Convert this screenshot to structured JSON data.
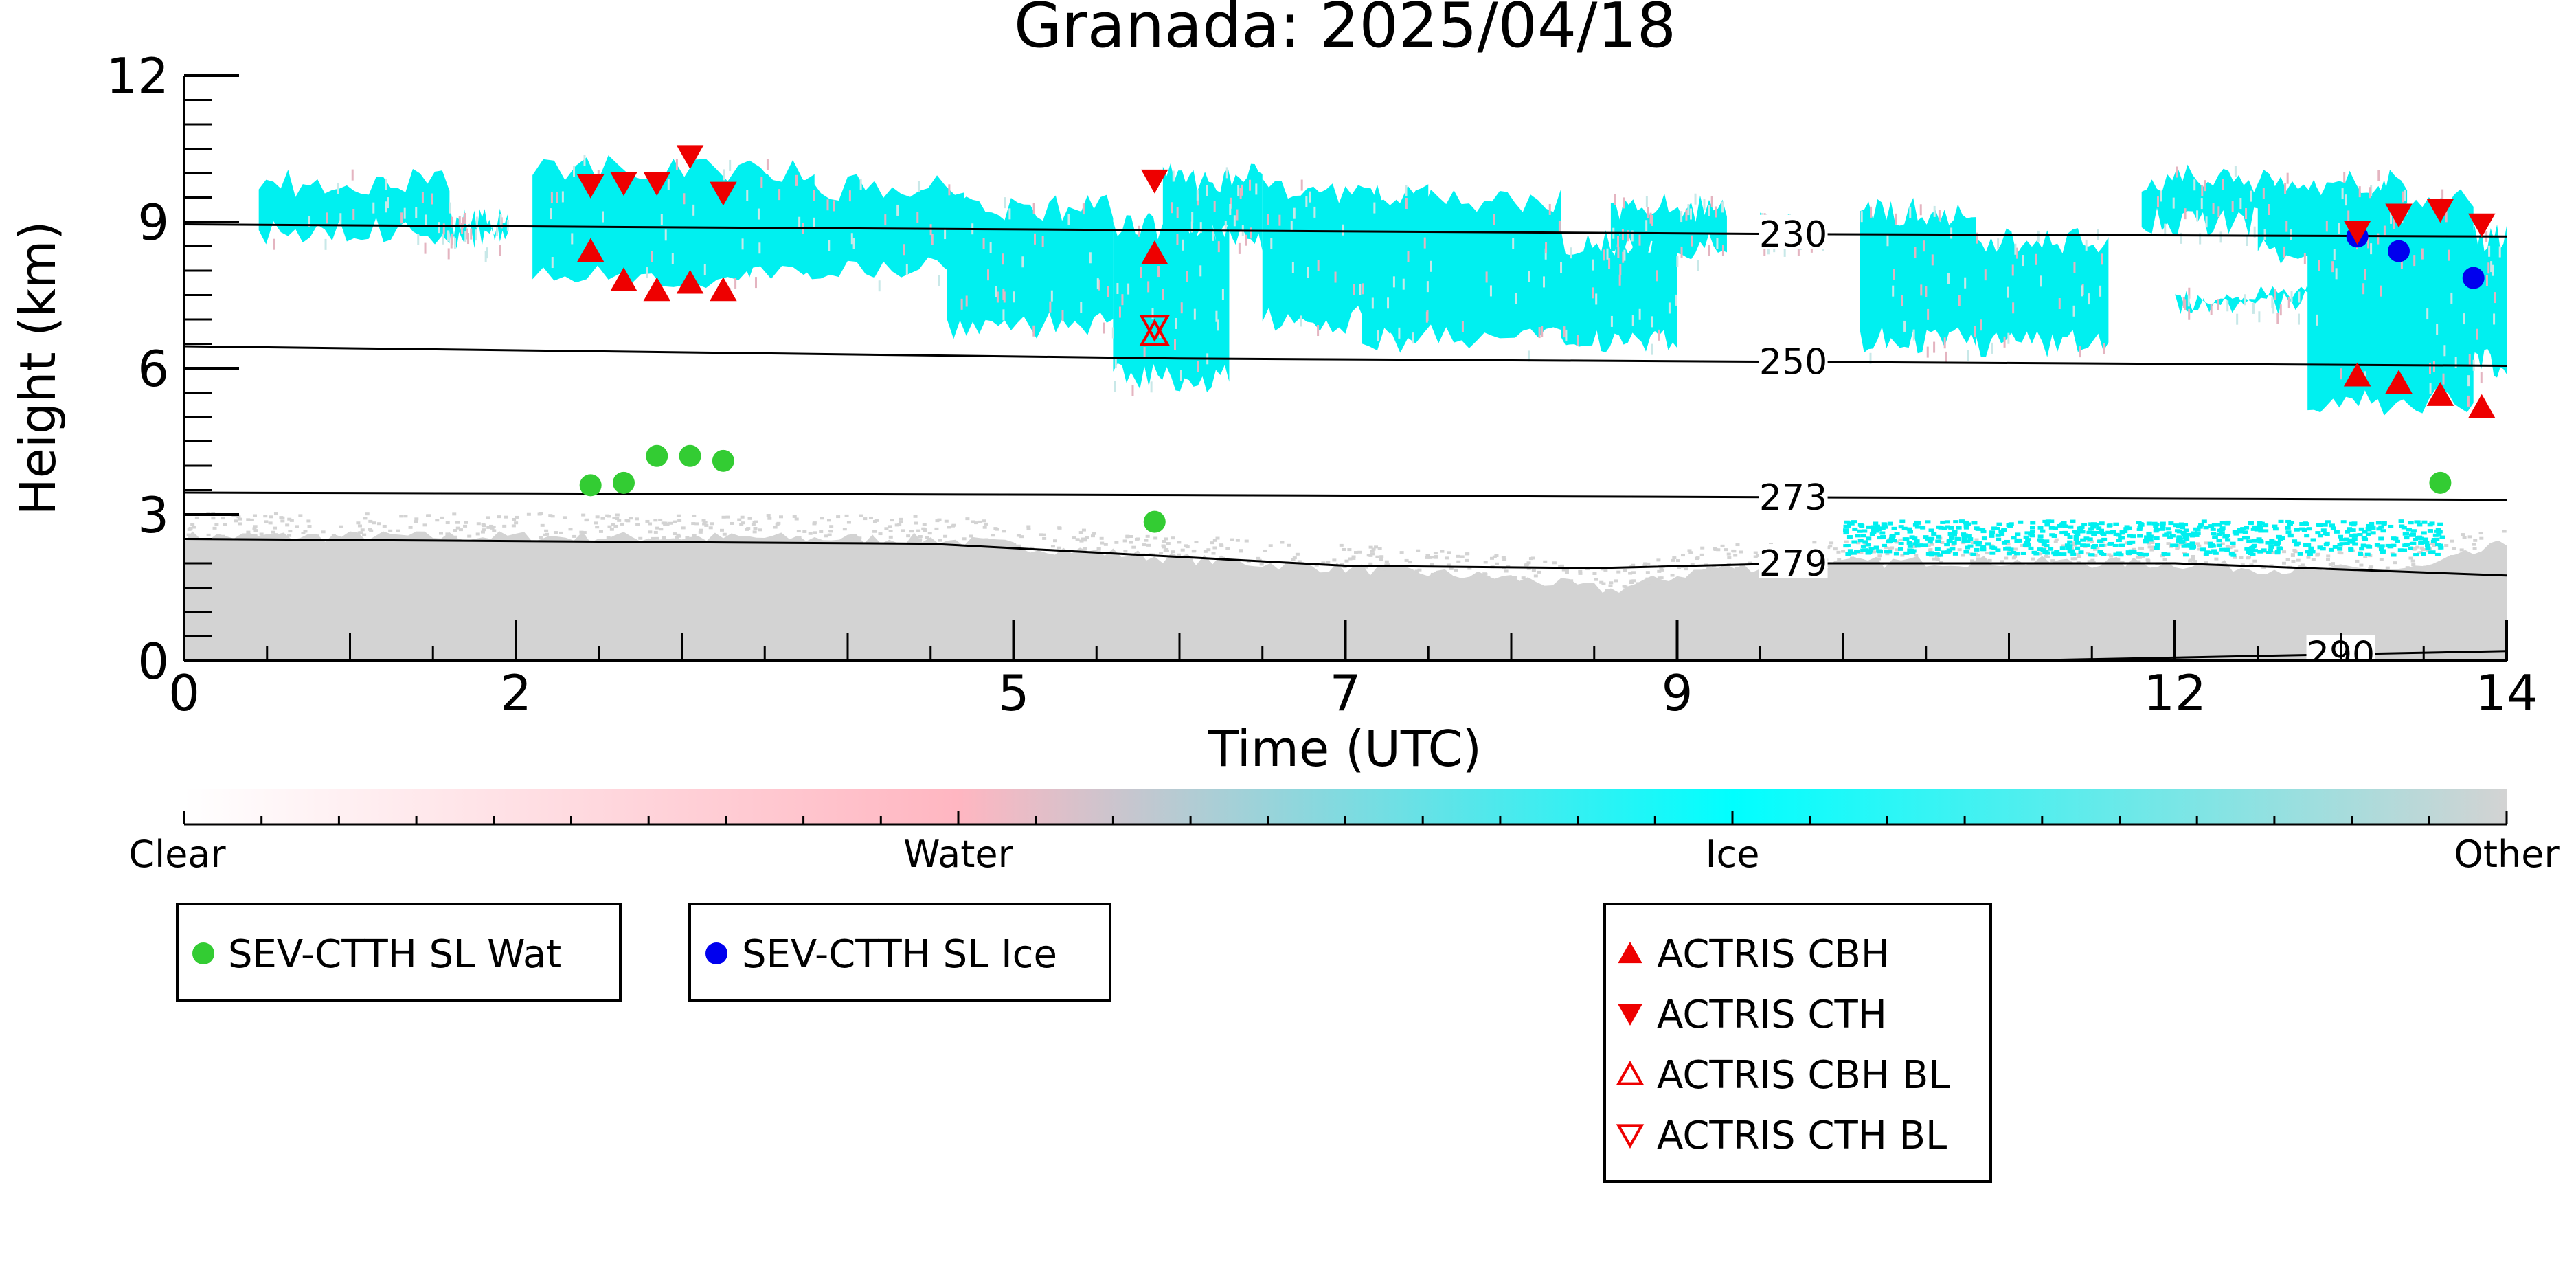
{
  "chart_data": {
    "type": "scatter",
    "title": "Granada: 2025/04/18",
    "xlabel": "Time (UTC)",
    "ylabel": "Height (km)",
    "xlim": [
      0,
      14
    ],
    "ylim": [
      0,
      12
    ],
    "x_ticks": [
      {
        "value": 0,
        "label": "0"
      },
      {
        "value": 2,
        "label": "2"
      },
      {
        "value": 5,
        "label": "5"
      },
      {
        "value": 7,
        "label": "7"
      },
      {
        "value": 9,
        "label": "9"
      },
      {
        "value": 12,
        "label": "12"
      },
      {
        "value": 14,
        "label": "14"
      }
    ],
    "y_ticks": [
      {
        "value": 0,
        "label": "0"
      },
      {
        "value": 3,
        "label": "3"
      },
      {
        "value": 6,
        "label": "6"
      },
      {
        "value": 9,
        "label": "9"
      },
      {
        "value": 12,
        "label": "12"
      }
    ],
    "colorbar": {
      "labels": [
        "Clear",
        "Water",
        "Ice",
        "Other"
      ],
      "colors": [
        "#ffffff",
        "#ffb6c1",
        "#00ffff",
        "#d3d3d3"
      ]
    },
    "colors": {
      "ice": "#00f0f0",
      "other": "#d3d3d3",
      "water": "#ffb6c1",
      "sev_wat": "#33cc33",
      "sev_ice": "#0000ee",
      "actris": "#ee0000"
    },
    "isotherms": [
      {
        "label": "230",
        "points": [
          [
            0,
            8.95
          ],
          [
            9.7,
            8.75
          ],
          [
            14,
            8.7
          ]
        ]
      },
      {
        "label": "250",
        "points": [
          [
            0,
            6.45
          ],
          [
            6,
            6.2
          ],
          [
            14,
            6.05
          ]
        ]
      },
      {
        "label": "273",
        "points": [
          [
            0,
            3.45
          ],
          [
            6,
            3.4
          ],
          [
            14,
            3.3
          ]
        ]
      },
      {
        "label": "279",
        "points": [
          [
            0,
            2.5
          ],
          [
            4.5,
            2.4
          ],
          [
            7,
            1.95
          ],
          [
            8.5,
            1.9
          ],
          [
            9.7,
            2.0
          ],
          [
            12,
            2.0
          ],
          [
            14,
            1.75
          ]
        ]
      },
      {
        "label": "290",
        "points": [
          [
            11,
            0.0
          ],
          [
            12.5,
            0.1
          ],
          [
            14,
            0.2
          ]
        ]
      }
    ],
    "series": [
      {
        "name": "SEV-CTTH SL Wat",
        "marker": "circle",
        "color": "#33cc33",
        "x": [
          2.45,
          2.65,
          2.85,
          3.05,
          3.25,
          5.85,
          13.6
        ],
        "y": [
          3.6,
          3.65,
          4.2,
          4.2,
          4.1,
          2.85,
          3.65
        ]
      },
      {
        "name": "SEV-CTTH SL Ice",
        "marker": "circle",
        "color": "#0000ee",
        "x": [
          13.1,
          13.35,
          13.8
        ],
        "y": [
          8.7,
          8.4,
          7.85
        ]
      },
      {
        "name": "ACTRIS CBH",
        "marker": "triangle-up",
        "color": "#ee0000",
        "x": [
          2.45,
          2.65,
          2.85,
          3.05,
          3.25,
          5.85,
          13.1,
          13.35,
          13.6,
          13.85
        ],
        "y": [
          8.4,
          7.8,
          7.6,
          7.75,
          7.6,
          8.35,
          5.85,
          5.7,
          5.45,
          5.2
        ]
      },
      {
        "name": "ACTRIS CTH",
        "marker": "triangle-down",
        "color": "#ee0000",
        "x": [
          2.45,
          2.65,
          2.85,
          3.05,
          3.25,
          5.85,
          13.1,
          13.35,
          13.6,
          13.85
        ],
        "y": [
          9.75,
          9.8,
          9.8,
          10.35,
          9.6,
          9.85,
          8.8,
          9.15,
          9.25,
          8.95
        ]
      },
      {
        "name": "ACTRIS CBH BL",
        "marker": "triangle-up-open",
        "color": "#ee0000",
        "x": [
          5.85
        ],
        "y": [
          6.7
        ]
      },
      {
        "name": "ACTRIS CTH BL",
        "marker": "triangle-down-open",
        "color": "#ee0000",
        "x": [
          5.85
        ],
        "y": [
          6.85
        ]
      }
    ],
    "legend": [
      {
        "group": "sev-wat",
        "entries": [
          {
            "marker": "circle",
            "color": "#33cc33",
            "label": "SEV-CTTH SL Wat"
          }
        ]
      },
      {
        "group": "sev-ice",
        "entries": [
          {
            "marker": "circle",
            "color": "#0000ee",
            "label": "SEV-CTTH SL Ice"
          }
        ]
      },
      {
        "group": "actris",
        "entries": [
          {
            "marker": "triangle-up",
            "color": "#ee0000",
            "label": "ACTRIS CBH"
          },
          {
            "marker": "triangle-down",
            "color": "#ee0000",
            "label": "ACTRIS CTH"
          },
          {
            "marker": "triangle-up-open",
            "color": "#ee0000",
            "label": "ACTRIS CBH BL"
          },
          {
            "marker": "triangle-down-open",
            "color": "#ee0000",
            "label": "ACTRIS CTH BL"
          }
        ]
      }
    ]
  }
}
